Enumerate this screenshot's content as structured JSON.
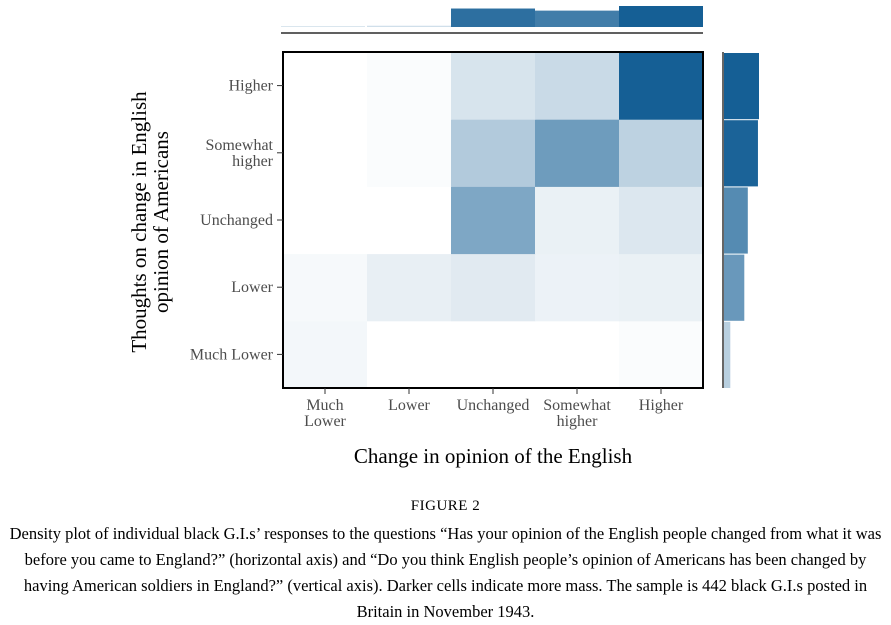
{
  "chart_data": {
    "type": "heatmap",
    "title": "",
    "xlabel": "Change in opinion of the English",
    "ylabel": "Thoughts on change in English opinion of Americans",
    "x_categories": [
      "Much Lower",
      "Lower",
      "Unchanged",
      "Somewhat higher",
      "Higher"
    ],
    "y_categories": [
      "Much Lower",
      "Lower",
      "Unchanged",
      "Somewhat higher",
      "Higher"
    ],
    "cells": [
      [
        0.05,
        0.0,
        0.0,
        0.0,
        0.02
      ],
      [
        0.04,
        0.1,
        0.13,
        0.08,
        0.09
      ],
      [
        0.0,
        0.0,
        0.55,
        0.09,
        0.15
      ],
      [
        0.0,
        0.02,
        0.33,
        0.62,
        0.28
      ],
      [
        0.0,
        0.02,
        0.17,
        0.23,
        1.0
      ]
    ],
    "x_marginal": [
      0.04,
      0.06,
      0.88,
      0.78,
      1.0
    ],
    "y_marginal": [
      0.18,
      0.58,
      0.68,
      0.97,
      1.0
    ],
    "color_scale": {
      "low": "#ffffff",
      "high": "#155f95"
    },
    "grid": false
  },
  "caption": {
    "figure_label": "FIGURE 2",
    "text": "Density plot of individual black G.I.s’ responses to the questions “Has your opinion of the English people changed from what it was before you came to England?” (horizontal axis) and “Do you think English people’s opinion of Americans has been changed by having American soldiers in England?” (vertical axis). Darker cells indicate more mass. The sample is 442 black G.I.s posted in Britain in November 1943."
  }
}
